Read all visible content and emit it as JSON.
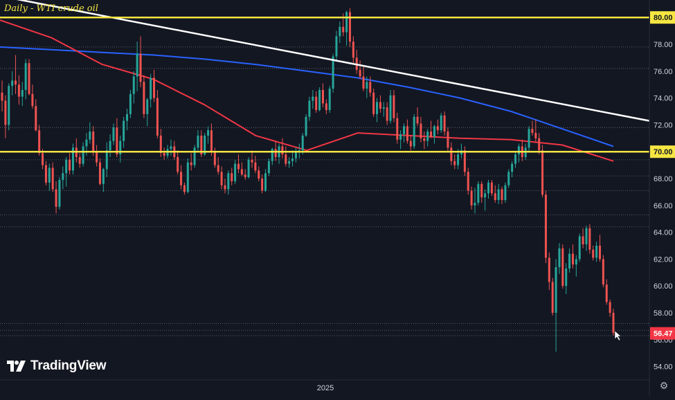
{
  "chart_data": {
    "type": "candlestick",
    "title": "Daily - WTI crude oil",
    "ylim": [
      53,
      81.3
    ],
    "yticks": [
      "54.00",
      "56.00",
      "58.00",
      "60.00",
      "62.00",
      "64.00",
      "66.00",
      "68.00",
      "70.00",
      "72.00",
      "74.00",
      "76.00",
      "78.00",
      "80.00"
    ],
    "x_tick_label": "2025",
    "last_price_label": "56.47",
    "last_price": 56.47,
    "levels": [
      80.0,
      70.0
    ],
    "level_labels": [
      "80.00",
      "70.00"
    ],
    "dotted_levels": [
      77.8,
      76.2,
      71.8,
      69.4,
      68.2,
      67.1,
      65.3,
      64.4,
      57.2,
      56.7,
      56.3
    ],
    "trendline": {
      "from": 81.6,
      "to": 72.3
    },
    "ma_blue": [
      77.8,
      77.6,
      77.4,
      77.2,
      76.9,
      76.5,
      76.0,
      75.5,
      74.8,
      74.0,
      73.0,
      71.7,
      70.4
    ],
    "ma_red": [
      79.8,
      78.5,
      76.5,
      75.4,
      73.5,
      71.2,
      70.1,
      71.4,
      71.2,
      71.0,
      70.9,
      70.5,
      69.3
    ],
    "candles": [
      [
        74.4,
        75.3,
        73.0,
        73.8
      ],
      [
        73.8,
        74.2,
        71.0,
        72.0
      ],
      [
        72.0,
        75.1,
        71.6,
        74.9
      ],
      [
        74.9,
        76.0,
        74.2,
        75.3
      ],
      [
        75.3,
        77.2,
        74.3,
        75.0
      ],
      [
        75.0,
        75.7,
        73.5,
        74.1
      ],
      [
        74.1,
        75.2,
        73.4,
        74.6
      ],
      [
        74.6,
        76.9,
        73.9,
        76.6
      ],
      [
        76.6,
        76.9,
        74.2,
        74.3
      ],
      [
        74.3,
        75.0,
        73.2,
        73.4
      ],
      [
        73.4,
        73.9,
        71.5,
        71.6
      ],
      [
        71.6,
        72.0,
        69.7,
        69.9
      ],
      [
        69.9,
        70.2,
        68.7,
        69.0
      ],
      [
        69.0,
        69.3,
        67.5,
        67.7
      ],
      [
        67.7,
        69.1,
        67.1,
        68.8
      ],
      [
        68.8,
        69.2,
        67.0,
        67.2
      ],
      [
        67.2,
        67.8,
        65.4,
        65.9
      ],
      [
        65.9,
        68.1,
        65.7,
        67.9
      ],
      [
        67.9,
        68.9,
        67.2,
        68.4
      ],
      [
        68.4,
        69.6,
        67.4,
        69.4
      ],
      [
        69.4,
        69.9,
        68.3,
        68.6
      ],
      [
        68.6,
        70.6,
        68.3,
        70.3
      ],
      [
        70.3,
        71.0,
        69.2,
        69.6
      ],
      [
        69.6,
        69.9,
        68.8,
        69.1
      ],
      [
        69.1,
        70.7,
        68.9,
        70.4
      ],
      [
        70.4,
        71.4,
        69.7,
        70.9
      ],
      [
        70.9,
        72.2,
        70.6,
        71.5
      ],
      [
        71.5,
        71.9,
        69.7,
        70.0
      ],
      [
        70.0,
        70.5,
        68.9,
        69.2
      ],
      [
        69.2,
        69.5,
        67.5,
        67.6
      ],
      [
        67.6,
        68.8,
        67.0,
        68.7
      ],
      [
        68.7,
        70.7,
        68.1,
        70.1
      ],
      [
        70.1,
        71.3,
        69.6,
        70.8
      ],
      [
        70.8,
        72.1,
        70.5,
        71.8
      ],
      [
        71.8,
        72.5,
        69.6,
        69.8
      ],
      [
        69.8,
        71.2,
        69.2,
        70.8
      ],
      [
        70.8,
        72.6,
        70.3,
        72.3
      ],
      [
        72.3,
        73.2,
        71.6,
        72.8
      ],
      [
        72.8,
        74.6,
        72.5,
        74.3
      ],
      [
        74.3,
        76.0,
        73.6,
        75.6
      ],
      [
        75.6,
        78.2,
        74.5,
        77.3
      ],
      [
        77.3,
        78.6,
        74.8,
        75.2
      ],
      [
        75.2,
        75.7,
        72.5,
        72.8
      ],
      [
        72.8,
        74.0,
        71.9,
        73.9
      ],
      [
        73.9,
        75.8,
        73.3,
        75.5
      ],
      [
        75.5,
        76.1,
        73.7,
        74.0
      ],
      [
        74.0,
        74.6,
        71.0,
        71.2
      ],
      [
        71.2,
        71.7,
        69.6,
        69.9
      ],
      [
        69.9,
        70.3,
        69.4,
        69.7
      ],
      [
        69.7,
        70.5,
        69.5,
        70.2
      ],
      [
        70.2,
        70.9,
        69.7,
        70.4
      ],
      [
        70.4,
        70.8,
        69.4,
        69.6
      ],
      [
        69.6,
        70.1,
        68.3,
        68.5
      ],
      [
        68.5,
        69.0,
        67.2,
        67.5
      ],
      [
        67.5,
        67.7,
        66.8,
        67.0
      ],
      [
        67.0,
        69.5,
        66.9,
        69.2
      ],
      [
        69.2,
        69.9,
        68.6,
        69.0
      ],
      [
        69.0,
        70.5,
        68.8,
        70.3
      ],
      [
        70.3,
        71.6,
        70.0,
        71.2
      ],
      [
        71.2,
        71.6,
        69.6,
        69.8
      ],
      [
        69.8,
        71.4,
        69.7,
        71.2
      ],
      [
        71.2,
        71.9,
        70.6,
        71.6
      ],
      [
        71.6,
        72.1,
        69.7,
        70.0
      ],
      [
        70.0,
        70.3,
        68.8,
        69.0
      ],
      [
        69.0,
        69.6,
        68.3,
        68.5
      ],
      [
        68.5,
        68.9,
        67.2,
        67.5
      ],
      [
        67.5,
        68.0,
        66.9,
        67.2
      ],
      [
        67.2,
        68.6,
        66.8,
        68.4
      ],
      [
        68.4,
        68.8,
        67.5,
        67.8
      ],
      [
        67.8,
        69.4,
        67.6,
        69.1
      ],
      [
        69.1,
        69.8,
        68.4,
        68.7
      ],
      [
        68.7,
        69.2,
        68.2,
        68.3
      ],
      [
        68.3,
        68.7,
        67.9,
        68.1
      ],
      [
        68.1,
        69.6,
        68.0,
        69.4
      ],
      [
        69.4,
        70.1,
        68.8,
        69.2
      ],
      [
        69.2,
        69.7,
        68.4,
        68.6
      ],
      [
        68.6,
        68.9,
        67.8,
        68.0
      ],
      [
        68.0,
        68.3,
        66.9,
        67.1
      ],
      [
        67.1,
        68.7,
        67.0,
        68.4
      ],
      [
        68.4,
        69.5,
        68.2,
        69.3
      ],
      [
        69.3,
        70.3,
        69.0,
        70.2
      ],
      [
        70.2,
        70.8,
        69.3,
        69.6
      ],
      [
        69.6,
        70.6,
        69.1,
        70.4
      ],
      [
        70.4,
        71.0,
        69.5,
        69.8
      ],
      [
        69.8,
        70.4,
        68.9,
        69.1
      ],
      [
        69.1,
        69.6,
        68.8,
        69.3
      ],
      [
        69.3,
        70.1,
        68.9,
        69.5
      ],
      [
        69.5,
        70.3,
        69.2,
        70.0
      ],
      [
        70.0,
        70.6,
        69.5,
        70.1
      ],
      [
        70.1,
        71.4,
        69.8,
        71.2
      ],
      [
        71.2,
        72.8,
        71.1,
        72.6
      ],
      [
        72.6,
        74.1,
        72.3,
        73.8
      ],
      [
        73.8,
        74.6,
        73.2,
        74.1
      ],
      [
        74.1,
        74.5,
        72.9,
        73.1
      ],
      [
        73.1,
        74.8,
        73.0,
        74.6
      ],
      [
        74.6,
        75.1,
        73.3,
        73.6
      ],
      [
        73.6,
        73.9,
        72.8,
        73.1
      ],
      [
        73.1,
        74.9,
        72.9,
        74.7
      ],
      [
        74.7,
        77.3,
        74.4,
        77.1
      ],
      [
        77.1,
        79.0,
        76.7,
        78.6
      ],
      [
        78.6,
        79.7,
        78.1,
        79.3
      ],
      [
        79.3,
        80.3,
        78.6,
        78.9
      ],
      [
        78.9,
        80.5,
        77.9,
        80.4
      ],
      [
        80.4,
        80.7,
        77.8,
        78.2
      ],
      [
        78.2,
        78.6,
        76.6,
        77.0
      ],
      [
        77.0,
        77.6,
        75.8,
        76.1
      ],
      [
        76.1,
        76.8,
        75.4,
        75.6
      ],
      [
        75.6,
        76.4,
        74.5,
        74.7
      ],
      [
        74.7,
        75.6,
        74.0,
        75.2
      ],
      [
        75.2,
        75.6,
        74.1,
        74.4
      ],
      [
        74.4,
        74.7,
        72.6,
        72.8
      ],
      [
        72.8,
        74.0,
        72.2,
        73.7
      ],
      [
        73.7,
        74.2,
        72.9,
        73.2
      ],
      [
        73.2,
        73.7,
        72.6,
        73.3
      ],
      [
        73.3,
        73.7,
        72.0,
        72.3
      ],
      [
        72.3,
        74.6,
        72.1,
        74.2
      ],
      [
        74.2,
        74.6,
        72.2,
        72.5
      ],
      [
        72.5,
        72.9,
        70.6,
        70.9
      ],
      [
        70.9,
        71.6,
        70.2,
        71.3
      ],
      [
        71.3,
        72.1,
        70.7,
        71.9
      ],
      [
        71.9,
        72.4,
        70.6,
        70.8
      ],
      [
        70.8,
        71.2,
        70.1,
        70.4
      ],
      [
        70.4,
        72.8,
        70.2,
        72.6
      ],
      [
        72.6,
        73.3,
        71.9,
        72.1
      ],
      [
        72.1,
        72.6,
        70.7,
        71.0
      ],
      [
        71.0,
        71.5,
        70.2,
        70.8
      ],
      [
        70.8,
        71.7,
        70.4,
        71.5
      ],
      [
        71.5,
        72.3,
        71.0,
        71.1
      ],
      [
        71.1,
        72.0,
        70.6,
        71.9
      ],
      [
        71.9,
        72.4,
        71.3,
        71.6
      ],
      [
        71.6,
        72.9,
        71.4,
        72.7
      ],
      [
        72.7,
        73.0,
        71.2,
        71.5
      ],
      [
        71.5,
        71.8,
        70.0,
        70.3
      ],
      [
        70.3,
        70.7,
        69.0,
        69.3
      ],
      [
        69.3,
        69.8,
        68.7,
        69.0
      ],
      [
        69.0,
        70.2,
        68.7,
        69.8
      ],
      [
        69.8,
        70.6,
        69.5,
        70.1
      ],
      [
        70.1,
        70.4,
        68.2,
        68.5
      ],
      [
        68.5,
        68.8,
        66.8,
        67.1
      ],
      [
        67.1,
        67.4,
        65.7,
        66.0
      ],
      [
        66.0,
        67.3,
        65.4,
        66.2
      ],
      [
        66.2,
        67.8,
        66.0,
        67.6
      ],
      [
        67.6,
        67.8,
        66.2,
        66.6
      ],
      [
        66.6,
        67.2,
        65.6,
        66.9
      ],
      [
        66.9,
        67.9,
        66.5,
        67.7
      ],
      [
        67.7,
        67.9,
        66.7,
        66.9
      ],
      [
        66.9,
        67.5,
        66.2,
        66.4
      ],
      [
        66.4,
        67.6,
        66.1,
        67.2
      ],
      [
        67.2,
        67.4,
        66.1,
        66.4
      ],
      [
        66.4,
        67.7,
        66.2,
        67.5
      ],
      [
        67.5,
        68.7,
        67.3,
        68.5
      ],
      [
        68.5,
        69.3,
        68.1,
        69.1
      ],
      [
        69.1,
        70.0,
        68.8,
        69.8
      ],
      [
        69.8,
        70.6,
        69.2,
        70.4
      ],
      [
        70.4,
        70.9,
        69.3,
        69.6
      ],
      [
        69.6,
        70.6,
        69.4,
        70.3
      ],
      [
        70.3,
        71.9,
        70.0,
        71.7
      ],
      [
        71.7,
        72.3,
        71.2,
        71.4
      ],
      [
        71.4,
        72.4,
        70.7,
        71.0
      ],
      [
        71.0,
        71.4,
        69.8,
        70.1
      ],
      [
        70.1,
        70.5,
        66.6,
        66.8
      ],
      [
        66.8,
        67.1,
        61.7,
        62.1
      ],
      [
        62.1,
        62.5,
        59.7,
        60.3
      ],
      [
        60.3,
        60.6,
        57.8,
        58.0
      ],
      [
        58.0,
        62.0,
        55.1,
        61.4
      ],
      [
        61.4,
        63.2,
        60.9,
        62.8
      ],
      [
        62.8,
        63.1,
        59.8,
        60.0
      ],
      [
        60.0,
        61.7,
        59.4,
        61.3
      ],
      [
        61.3,
        62.8,
        61.0,
        62.4
      ],
      [
        62.4,
        63.1,
        61.3,
        61.6
      ],
      [
        61.6,
        62.3,
        60.7,
        62.0
      ],
      [
        62.0,
        63.9,
        61.8,
        63.7
      ],
      [
        63.7,
        64.3,
        62.8,
        63.1
      ],
      [
        63.1,
        64.5,
        62.6,
        64.3
      ],
      [
        64.3,
        64.6,
        62.4,
        62.7
      ],
      [
        62.7,
        63.0,
        61.9,
        62.1
      ],
      [
        62.1,
        63.3,
        61.8,
        63.0
      ],
      [
        63.0,
        63.8,
        61.8,
        62.0
      ],
      [
        62.0,
        62.3,
        59.9,
        60.1
      ],
      [
        60.1,
        60.5,
        58.6,
        58.8
      ],
      [
        58.8,
        59.0,
        57.7,
        58.0
      ],
      [
        58.0,
        58.3,
        56.3,
        56.5
      ]
    ]
  },
  "colors": {
    "background": "#131722",
    "up": "#26a69a",
    "down": "#ef5350",
    "level": "#f5e642",
    "trendline": "#ffffff",
    "ma_blue": "#2962ff",
    "ma_red": "#f23645",
    "grid_dots": "#b2b5be",
    "axis_text": "#d1d4dc",
    "last_price_bg": "#f23645"
  },
  "branding": {
    "name": "TradingView",
    "icon": "tradingview-logo-icon"
  },
  "settings_icon": "gear-icon"
}
